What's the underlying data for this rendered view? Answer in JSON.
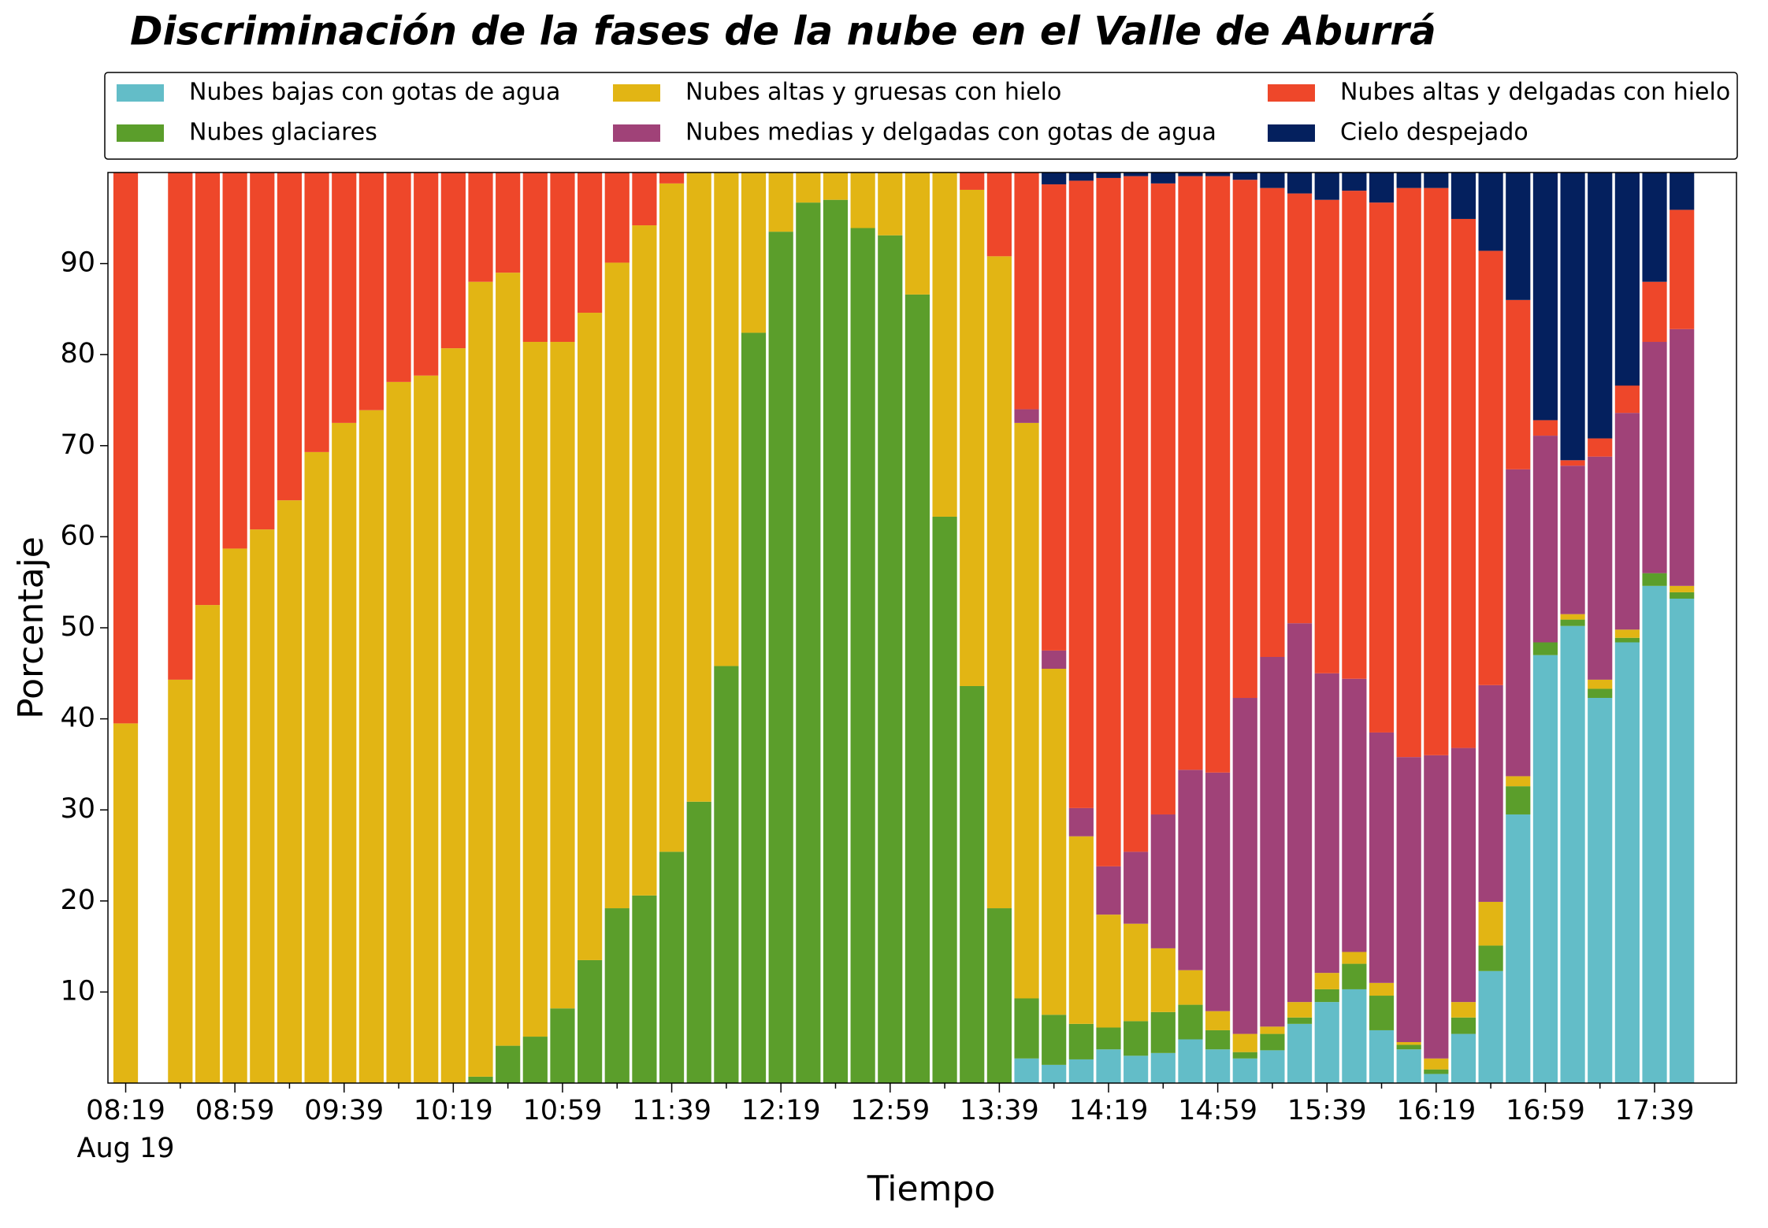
{
  "chart_data": {
    "type": "stacked_bar",
    "title": "Discriminación de la fases de la nube en el Valle de Aburrá",
    "x_label": "Tiempo",
    "y_label": "Porcentaje",
    "date_label": "Aug 19",
    "categories": [
      "08:19",
      null,
      null,
      null,
      "08:59",
      null,
      null,
      null,
      "09:39",
      null,
      null,
      null,
      "10:19",
      null,
      null,
      null,
      "10:59",
      null,
      null,
      null,
      "11:39",
      null,
      null,
      null,
      "12:19",
      null,
      null,
      null,
      "12:59",
      null,
      null,
      null,
      "13:39",
      null,
      null,
      null,
      "14:19",
      null,
      null,
      null,
      "14:59",
      null,
      null,
      null,
      "15:39",
      null,
      null,
      null,
      "16:19",
      null,
      null,
      null,
      "16:59",
      null,
      null,
      null,
      "17:39",
      null
    ],
    "ylim": [
      0,
      100
    ],
    "yticks": [
      10,
      20,
      30,
      40,
      50,
      60,
      70,
      80,
      90
    ],
    "grid": false,
    "legend": "top",
    "series": [
      {
        "name": "Nubes bajas con gotas de agua",
        "color": "#63bdc8",
        "values": [
          0,
          null,
          0,
          0,
          0,
          0,
          0,
          0,
          0,
          0,
          0,
          0,
          0,
          0,
          0,
          0,
          0,
          0,
          0,
          0,
          0,
          0,
          0,
          0,
          0,
          0,
          0,
          0,
          0,
          0,
          0,
          0,
          0,
          2.7,
          2.0,
          2.6,
          3.7,
          3.0,
          3.3,
          4.8,
          3.7,
          2.7,
          3.6,
          6.5,
          8.9,
          10.3,
          5.8,
          3.7,
          1.0,
          5.4,
          12.3,
          29.5,
          47.0,
          50.2,
          42.3,
          48.4,
          54.6,
          53.2
        ]
      },
      {
        "name": "Nubes glaciares",
        "color": "#5b9e2b",
        "values": [
          0,
          null,
          0,
          0,
          0,
          0,
          0,
          0,
          0,
          0,
          0,
          0,
          0,
          0.7,
          4.1,
          5.1,
          8.2,
          13.5,
          19.2,
          20.6,
          25.4,
          30.9,
          45.8,
          82.4,
          93.5,
          96.7,
          97,
          93.9,
          93.1,
          86.6,
          62.2,
          43.6,
          19.2,
          6.6,
          5.5,
          3.9,
          2.4,
          3.8,
          4.5,
          3.8,
          2.1,
          0.7,
          1.8,
          0.7,
          1.4,
          2.8,
          3.8,
          0.5,
          0.5,
          1.8,
          2.8,
          3.1,
          1.4,
          0.7,
          1,
          0.5,
          1.4,
          0.7
        ]
      },
      {
        "name": "Nubes altas y gruesas con hielo",
        "color": "#e2b514",
        "values": [
          39.5,
          null,
          44.3,
          52.5,
          58.7,
          60.8,
          64,
          69.3,
          72.5,
          73.9,
          77,
          77.7,
          80.7,
          87.3,
          84.9,
          76.3,
          73.2,
          71.1,
          70.9,
          73.6,
          73.4,
          69.1,
          54.2,
          17.6,
          6.5,
          3.3,
          3,
          6.1,
          6.9,
          13.4,
          37.8,
          54.5,
          71.6,
          63.2,
          38,
          20.6,
          12.4,
          10.7,
          7,
          3.8,
          2.1,
          2,
          0.8,
          1.7,
          1.8,
          1.3,
          1.4,
          0.3,
          1.2,
          1.7,
          4.8,
          1.1,
          0,
          0.6,
          1,
          0.9,
          0,
          0.7
        ]
      },
      {
        "name": "Nubes medias y delgadas con gotas de agua",
        "color": "#a04278",
        "values": [
          0,
          null,
          0,
          0,
          0,
          0,
          0,
          0,
          0,
          0,
          0,
          0,
          0,
          0,
          0,
          0,
          0,
          0,
          0,
          0,
          0,
          0,
          0,
          0,
          0,
          0,
          0,
          0,
          0,
          0,
          0,
          0,
          0,
          1.5,
          2,
          3.1,
          5.3,
          7.9,
          14.7,
          22,
          26.2,
          36.9,
          40.6,
          41.6,
          32.9,
          30,
          27.5,
          31.3,
          33.3,
          27.9,
          23.8,
          33.7,
          22.7,
          16.3,
          24.5,
          23.8,
          25.4,
          28.2
        ]
      },
      {
        "name": "Nubes altas y delgadas con hielo",
        "color": "#ee472a",
        "values": [
          60.5,
          null,
          55.7,
          47.5,
          41.3,
          39.2,
          36,
          30.7,
          27.5,
          26.1,
          23,
          22.3,
          19.3,
          12,
          11,
          18.6,
          18.6,
          15.4,
          9.9,
          5.8,
          1.2,
          0,
          0,
          0,
          0,
          0,
          0,
          0,
          0,
          0,
          0,
          1.9,
          9.2,
          26,
          51.2,
          68.9,
          75.6,
          74.2,
          69.3,
          65.2,
          65.5,
          56.9,
          51.5,
          47.2,
          52,
          53.6,
          58.2,
          62.5,
          62.3,
          58.1,
          47.7,
          18.6,
          1.7,
          0.6,
          2,
          3,
          6.6,
          13.1
        ]
      },
      {
        "name": "Cielo despejado",
        "color": "#04205e",
        "values": [
          0,
          null,
          0,
          0,
          0,
          0,
          0,
          0,
          0,
          0,
          0,
          0,
          0,
          0,
          0,
          0,
          0,
          0,
          0,
          0,
          0,
          0,
          0,
          0,
          0,
          0,
          0,
          0,
          0,
          0,
          0,
          0,
          0,
          0,
          1.3,
          0.9,
          0.6,
          0.4,
          1.2,
          0.4,
          0.4,
          0.8,
          1.7,
          2.3,
          3,
          2,
          3.3,
          1.7,
          1.7,
          5.1,
          8.6,
          14,
          27.2,
          31.6,
          29.2,
          23.4,
          12,
          4.1
        ]
      }
    ]
  }
}
